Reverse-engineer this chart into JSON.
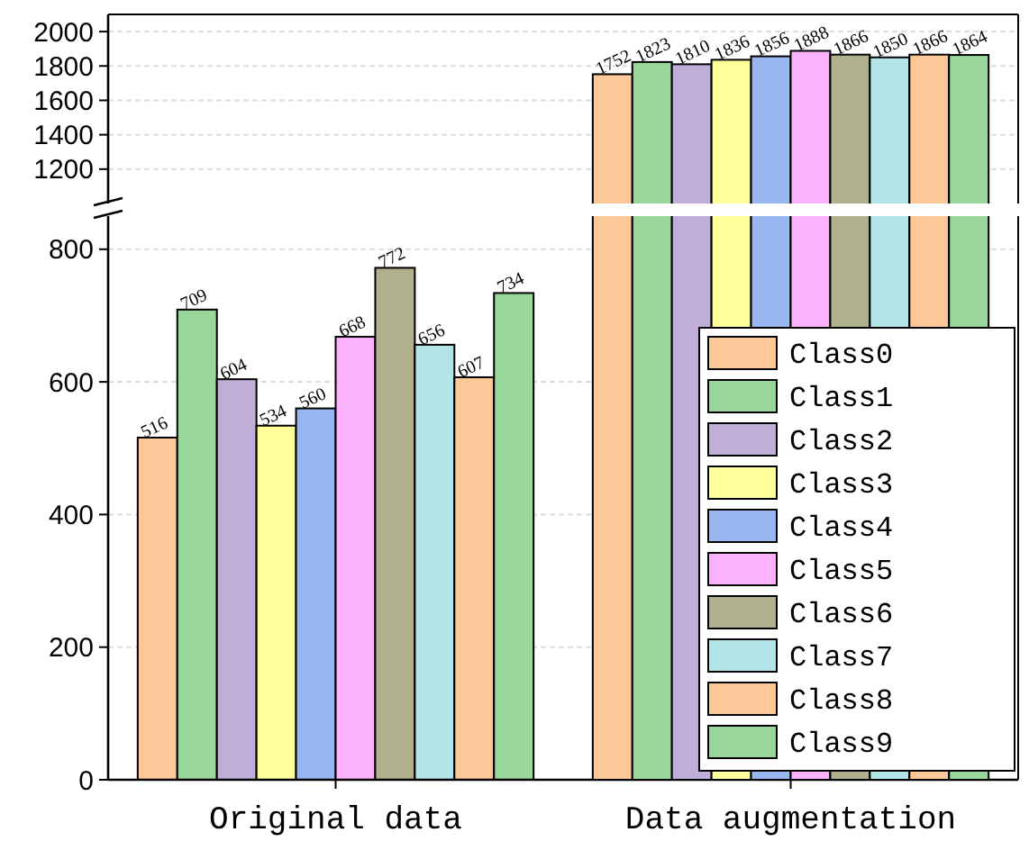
{
  "chart_data": [
    {
      "type": "bar",
      "ylim": [
        1000,
        2100
      ],
      "yticks": [
        1200,
        1400,
        1600,
        1800,
        2000
      ],
      "grid": "y",
      "legend": false,
      "tick_labels": "y",
      "series": [
        {
          "color": "#fdc897",
          "values": [
            null,
            1752
          ],
          "value_labels": [
            null,
            "1752"
          ]
        },
        {
          "color": "#98d69a",
          "values": [
            null,
            1823
          ],
          "value_labels": [
            null,
            "1823"
          ]
        },
        {
          "color": "#c0aed8",
          "values": [
            null,
            1810
          ],
          "value_labels": [
            null,
            "1810"
          ]
        },
        {
          "color": "#ffff99",
          "values": [
            null,
            1836
          ],
          "value_labels": [
            null,
            "1836"
          ]
        },
        {
          "color": "#98b6f0",
          "values": [
            null,
            1856
          ],
          "value_labels": [
            null,
            "1856"
          ]
        },
        {
          "color": "#fbb1fb",
          "values": [
            null,
            1888
          ],
          "value_labels": [
            null,
            "1888"
          ]
        },
        {
          "color": "#b0b08f",
          "values": [
            null,
            1866
          ],
          "value_labels": [
            null,
            "1866"
          ]
        },
        {
          "color": "#b2e4e8",
          "values": [
            null,
            1850
          ],
          "value_labels": [
            null,
            "1850"
          ]
        },
        {
          "color": "#fdc897",
          "values": [
            null,
            1866
          ],
          "value_labels": [
            null,
            "1866"
          ]
        },
        {
          "color": "#98d69a",
          "values": [
            null,
            1864
          ],
          "value_labels": [
            null,
            "1864"
          ]
        }
      ]
    },
    {
      "type": "bar",
      "categories": [
        "Original data",
        "Data augmentation"
      ],
      "ylim": [
        0,
        850
      ],
      "yticks": [
        0,
        200,
        400,
        600,
        800
      ],
      "grid": "y",
      "legend": "bottom right",
      "series": [
        {
          "name": "Class0",
          "color": "#fdc897",
          "values": [
            516,
            null
          ],
          "value_labels": [
            "516",
            null
          ]
        },
        {
          "name": "Class1",
          "color": "#98d69a",
          "values": [
            709,
            null
          ],
          "value_labels": [
            "709",
            null
          ]
        },
        {
          "name": "Class2",
          "color": "#c0aed8",
          "values": [
            604,
            null
          ],
          "value_labels": [
            "604",
            null
          ]
        },
        {
          "name": "Class3",
          "color": "#ffff99",
          "values": [
            534,
            null
          ],
          "value_labels": [
            "534",
            null
          ]
        },
        {
          "name": "Class4",
          "color": "#98b6f0",
          "values": [
            560,
            null
          ],
          "value_labels": [
            "560",
            null
          ]
        },
        {
          "name": "Class5",
          "color": "#fbb1fb",
          "values": [
            668,
            null
          ],
          "value_labels": [
            "668",
            null
          ]
        },
        {
          "name": "Class6",
          "color": "#b0b08f",
          "values": [
            772,
            null
          ],
          "value_labels": [
            "772",
            null
          ]
        },
        {
          "name": "Class7",
          "color": "#b2e4e8",
          "values": [
            656,
            null
          ],
          "value_labels": [
            "656",
            null
          ]
        },
        {
          "name": "Class8",
          "color": "#fdc897",
          "values": [
            607,
            null
          ],
          "value_labels": [
            "607",
            null
          ]
        },
        {
          "name": "Class9",
          "color": "#98d69a",
          "values": [
            734,
            null
          ],
          "value_labels": [
            "734",
            null
          ]
        }
      ]
    }
  ]
}
